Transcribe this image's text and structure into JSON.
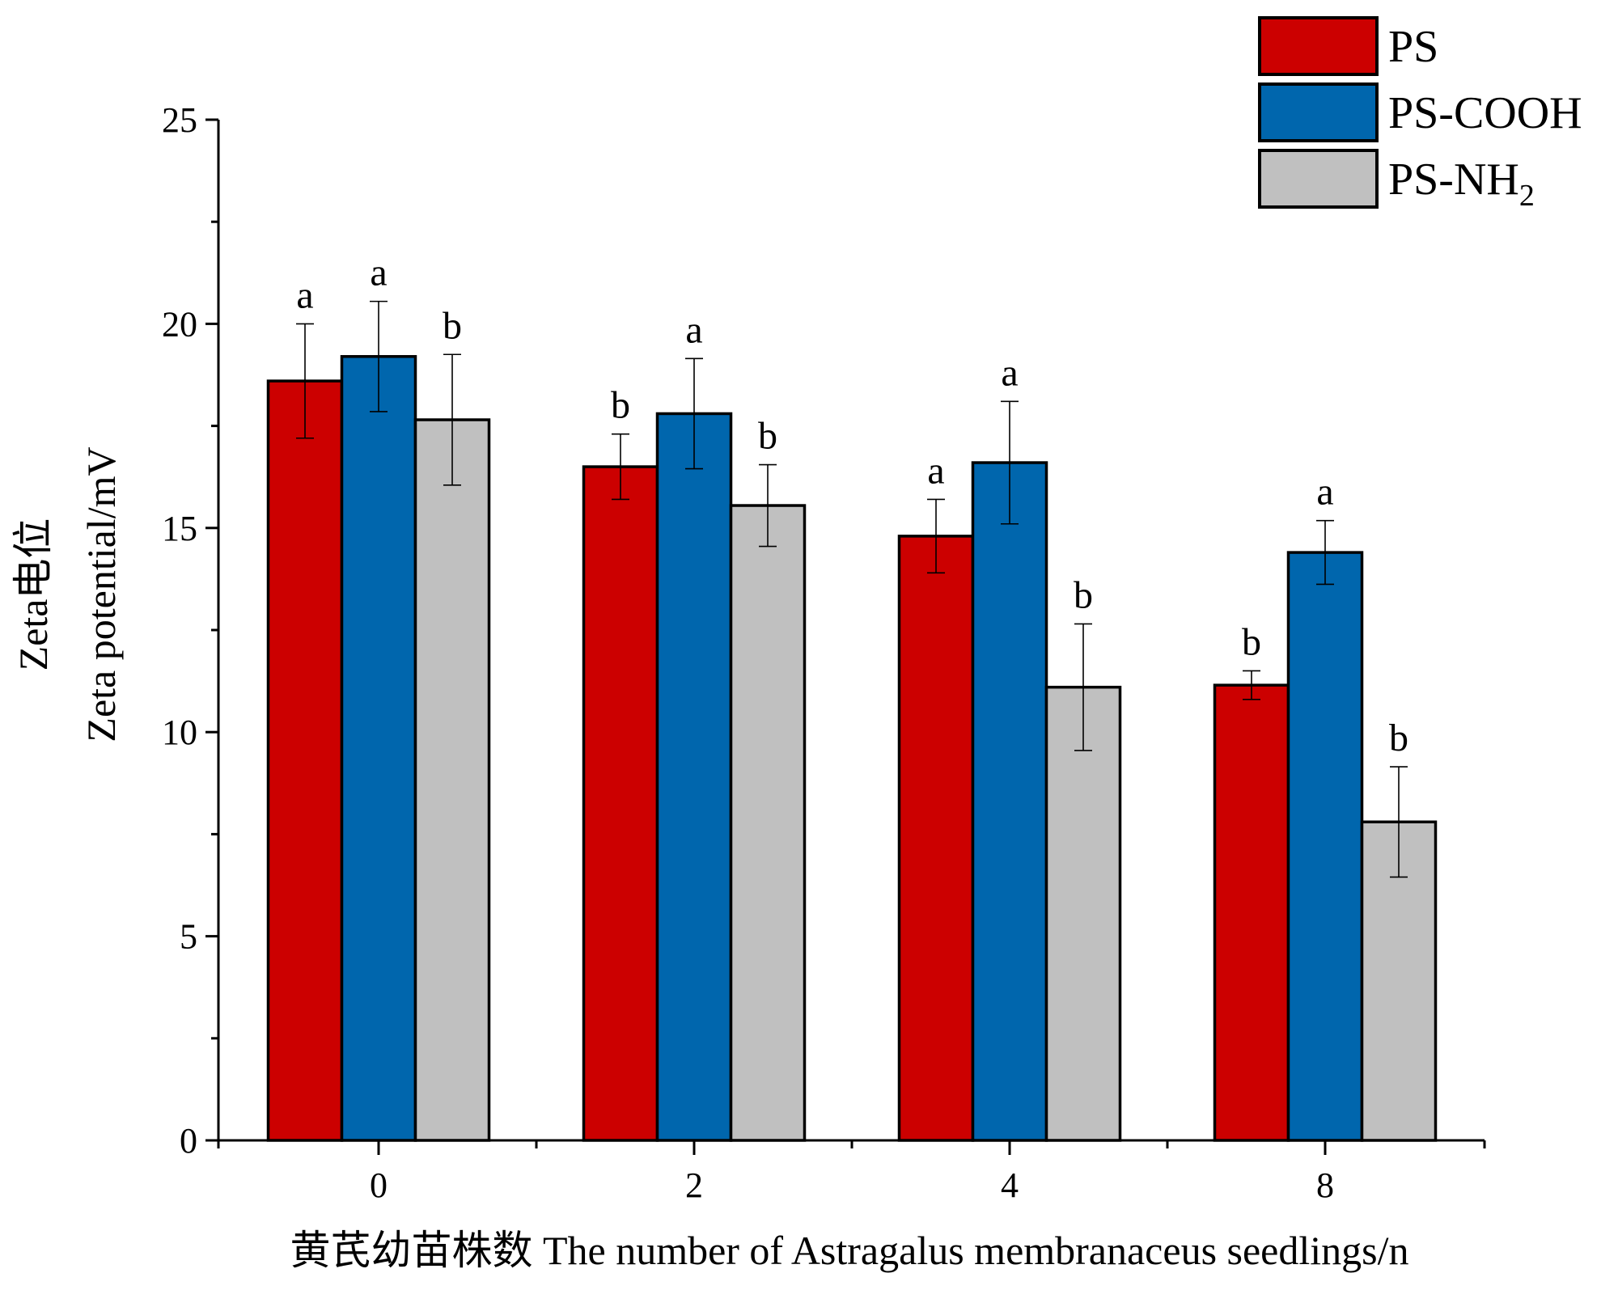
{
  "chart_data": {
    "type": "bar",
    "categories": [
      "0",
      "2",
      "4",
      "8"
    ],
    "series": [
      {
        "name": "PS",
        "color": "#cc0000",
        "values": [
          18.6,
          16.5,
          14.8,
          11.15
        ],
        "errors": [
          1.4,
          0.8,
          0.9,
          0.35
        ],
        "letters": [
          "a",
          "b",
          "a",
          "b"
        ]
      },
      {
        "name": "PS-COOH",
        "color": "#0066ad",
        "values": [
          19.2,
          17.8,
          16.6,
          14.4
        ],
        "errors": [
          1.35,
          1.35,
          1.5,
          0.78
        ],
        "letters": [
          "a",
          "a",
          "a",
          "a"
        ]
      },
      {
        "name": "PS-NH",
        "name_subscript": "2",
        "color": "#c0c0c0",
        "values": [
          17.65,
          15.55,
          11.1,
          7.8
        ],
        "errors": [
          1.6,
          1.0,
          1.55,
          1.35
        ],
        "letters": [
          "b",
          "b",
          "b",
          "b"
        ]
      }
    ],
    "xlabel": "黄芪幼苗株数 The number of Astragalus membranaceus seedlings/n",
    "ylabel_cn": "Zeta电位",
    "ylabel_en": "Zeta potential/mV",
    "ylim": [
      0,
      25
    ],
    "yticks": [
      "0",
      "5",
      "10",
      "15",
      "20",
      "25"
    ],
    "ytick_values": [
      0,
      5,
      10,
      15,
      20,
      25
    ],
    "legend_position": "top-right",
    "grid": false
  }
}
